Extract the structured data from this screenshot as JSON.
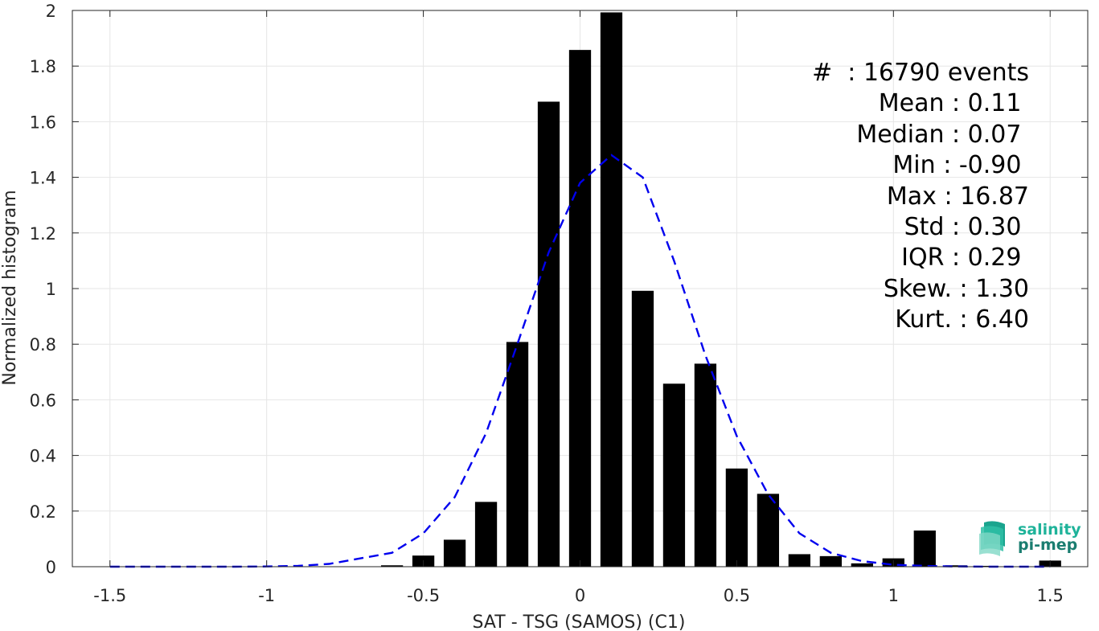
{
  "chart_data": {
    "type": "bar",
    "xlabel": "SAT - TSG (SAMOS) (C1)",
    "ylabel": "Normalized histogram",
    "xlim": [
      -1.62,
      1.62
    ],
    "ylim": [
      0,
      2
    ],
    "grid": true,
    "x_ticks": [
      -1.5,
      -1,
      -0.5,
      0,
      0.5,
      1,
      1.5
    ],
    "x_tick_labels": [
      "-1.5",
      "-1",
      "-0.5",
      "0",
      "0.5",
      "1",
      "1.5"
    ],
    "y_ticks": [
      0,
      0.2,
      0.4,
      0.6,
      0.8,
      1,
      1.2,
      1.4,
      1.6,
      1.8,
      2
    ],
    "y_tick_labels": [
      "0",
      "0.2",
      "0.4",
      "0.6",
      "0.8",
      "1",
      "1.2",
      "1.4",
      "1.6",
      "1.8",
      "2"
    ],
    "bar_color": "#000000",
    "bars": {
      "width": 0.07,
      "x": [
        -0.6,
        -0.5,
        -0.4,
        -0.3,
        -0.2,
        -0.1,
        0.0,
        0.1,
        0.2,
        0.3,
        0.4,
        0.5,
        0.6,
        0.7,
        0.8,
        0.9,
        1.0,
        1.1,
        1.2,
        1.3,
        1.5
      ],
      "values": [
        0.005,
        0.04,
        0.097,
        0.233,
        0.808,
        1.672,
        1.858,
        1.993,
        0.992,
        0.658,
        0.73,
        0.353,
        0.262,
        0.045,
        0.038,
        0.012,
        0.03,
        0.13,
        0.005,
        0.003,
        0.022
      ]
    },
    "fit_curve": {
      "style": "dashed",
      "color": "#0000ee",
      "x": [
        -1.5,
        -1.4,
        -1.3,
        -1.2,
        -1.1,
        -1.0,
        -0.9,
        -0.8,
        -0.7,
        -0.6,
        -0.5,
        -0.4,
        -0.3,
        -0.2,
        -0.1,
        0.0,
        0.1,
        0.2,
        0.3,
        0.4,
        0.5,
        0.6,
        0.7,
        0.8,
        0.9,
        1.0,
        1.1,
        1.2,
        1.3,
        1.4,
        1.5
      ],
      "y": [
        0,
        0,
        0,
        0,
        0,
        0.001,
        0.003,
        0.01,
        0.03,
        0.05,
        0.12,
        0.25,
        0.48,
        0.8,
        1.13,
        1.38,
        1.48,
        1.4,
        1.1,
        0.76,
        0.47,
        0.26,
        0.12,
        0.05,
        0.02,
        0.007,
        0.003,
        0.001,
        0,
        0,
        0
      ]
    }
  },
  "stats": [
    "#  : 16790 events",
    "Mean : 0.11 ",
    "Median : 0.07 ",
    "Min : -0.90 ",
    "Max : 16.87",
    "Std : 0.30 ",
    "IQR : 0.29 ",
    "Skew. : 1.30",
    "Kurt. : 6.40"
  ],
  "logo": {
    "line1": "salinity",
    "line2": "pi-mep",
    "color_top": "#1fb39a",
    "color_bottom": "#1a7d70"
  }
}
